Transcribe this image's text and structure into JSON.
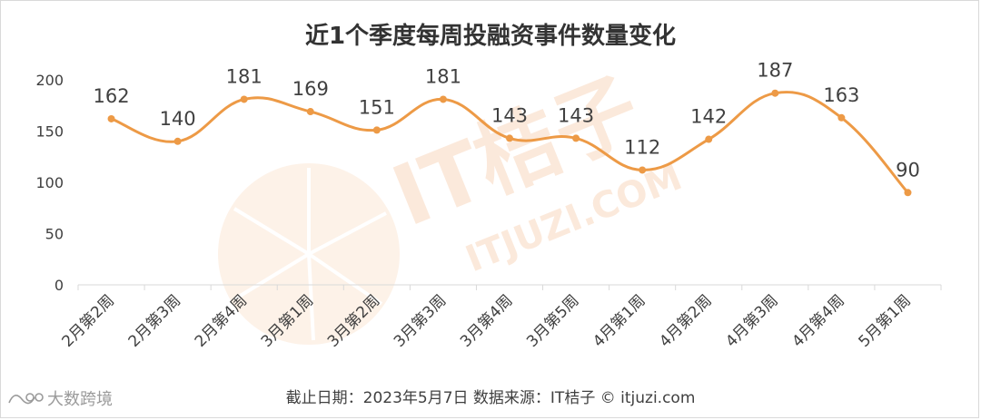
{
  "chart_data": {
    "type": "line",
    "title": "近1个季度每周投融资事件数量变化",
    "categories": [
      "2月第2周",
      "2月第3周",
      "2月第4周",
      "3月第1周",
      "3月第2周",
      "3月第3周",
      "3月第4周",
      "3月第5周",
      "4月第1周",
      "4月第2周",
      "4月第3周",
      "4月第4周",
      "5月第1周"
    ],
    "series": [
      {
        "values": [
          162,
          140,
          181,
          169,
          151,
          181,
          143,
          143,
          112,
          142,
          187,
          163,
          90
        ]
      }
    ],
    "ylim": [
      0,
      200
    ],
    "yticks": [
      "0",
      "50",
      "100",
      "150",
      "200"
    ],
    "smooth": true,
    "grid": false,
    "legend": "none",
    "data_labels": true
  },
  "footer": {
    "text": "截止日期：2023年5月7日    数据来源：IT桔子 © itjuzi.com"
  },
  "watermark": {
    "brand": "IT桔子",
    "url": "ITJUZI.COM"
  },
  "corner_logo": {
    "text": "大数跨境"
  },
  "colors": {
    "line": "#ED9A46",
    "axis": "#d9d9d9",
    "watermark": "#F6C9A8"
  }
}
